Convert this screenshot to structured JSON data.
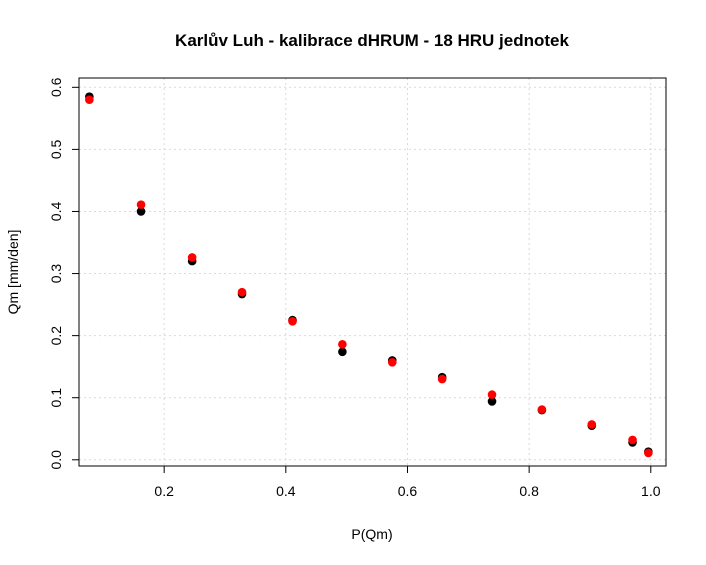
{
  "chart_data": {
    "type": "scatter",
    "title": "Karlův Luh - kalibrace dHRUM - 18 HRU jednotek",
    "xlabel": "P(Qm)",
    "ylabel": "Qm [mm/den]",
    "xlim": [
      0.06,
      1.025
    ],
    "ylim": [
      -0.01,
      0.615
    ],
    "x_ticks": [
      0.2,
      0.4,
      0.6,
      0.8,
      1.0
    ],
    "x_tick_labels": [
      "0.2",
      "0.4",
      "0.6",
      "0.8",
      "1.0"
    ],
    "y_ticks": [
      0.0,
      0.1,
      0.2,
      0.3,
      0.4,
      0.5,
      0.6
    ],
    "y_tick_labels": [
      "0.0",
      "0.1",
      "0.2",
      "0.3",
      "0.4",
      "0.5",
      "0.6"
    ],
    "grid": true,
    "series": [
      {
        "color": "#000000",
        "x": [
          0.077,
          0.162,
          0.246,
          0.328,
          0.411,
          0.493,
          0.575,
          0.657,
          0.739,
          0.821,
          0.903,
          0.97,
          0.996
        ],
        "y": [
          0.585,
          0.4,
          0.32,
          0.267,
          0.225,
          0.174,
          0.16,
          0.133,
          0.094,
          0.08,
          0.055,
          0.028,
          0.013
        ]
      },
      {
        "color": "#ff0000",
        "x": [
          0.077,
          0.162,
          0.246,
          0.328,
          0.411,
          0.493,
          0.575,
          0.657,
          0.739,
          0.821,
          0.903,
          0.97,
          0.996
        ],
        "y": [
          0.58,
          0.411,
          0.326,
          0.27,
          0.223,
          0.186,
          0.157,
          0.13,
          0.105,
          0.081,
          0.057,
          0.032,
          0.011
        ]
      }
    ]
  }
}
